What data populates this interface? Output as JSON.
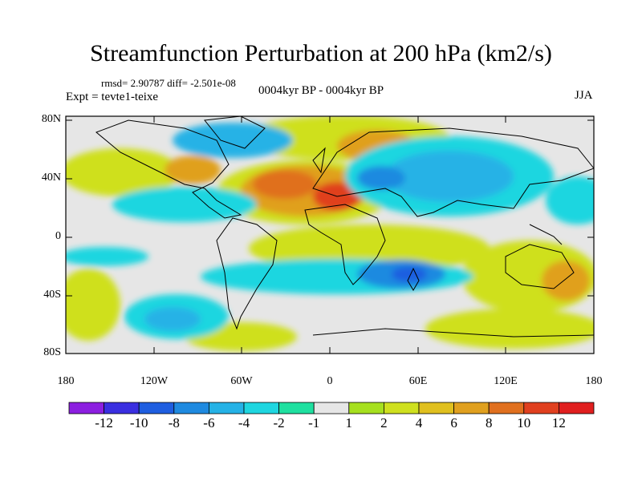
{
  "title": "Streamfunction Perturbation at 200 hPa (km2/s)",
  "stats": "rmsd= 2.90787 diff= -2.501e-08",
  "experiment": "Expt = tevte1-teixe",
  "period": "0004kyr BP - 0004kyr BP",
  "season": "JJA",
  "lat_labels": [
    "80N",
    "40N",
    "0",
    "40S",
    "80S"
  ],
  "lon_labels": [
    "180",
    "120W",
    "60W",
    "0",
    "60E",
    "120E",
    "180"
  ],
  "colorbar": {
    "labels": [
      "-12",
      "-10",
      "-8",
      "-6",
      "-4",
      "-2",
      "-1",
      "1",
      "2",
      "4",
      "6",
      "8",
      "10",
      "12"
    ],
    "colors": [
      "#8c1fe0",
      "#3a2fe0",
      "#1f5ee0",
      "#1f8ae0",
      "#25b2e6",
      "#1fd6e0",
      "#1fe0a0",
      "#e6e6e6",
      "#a6e01f",
      "#cfe01f",
      "#e0c01f",
      "#e0a01f",
      "#e0701f",
      "#e0401f",
      "#e01f1f"
    ]
  }
}
